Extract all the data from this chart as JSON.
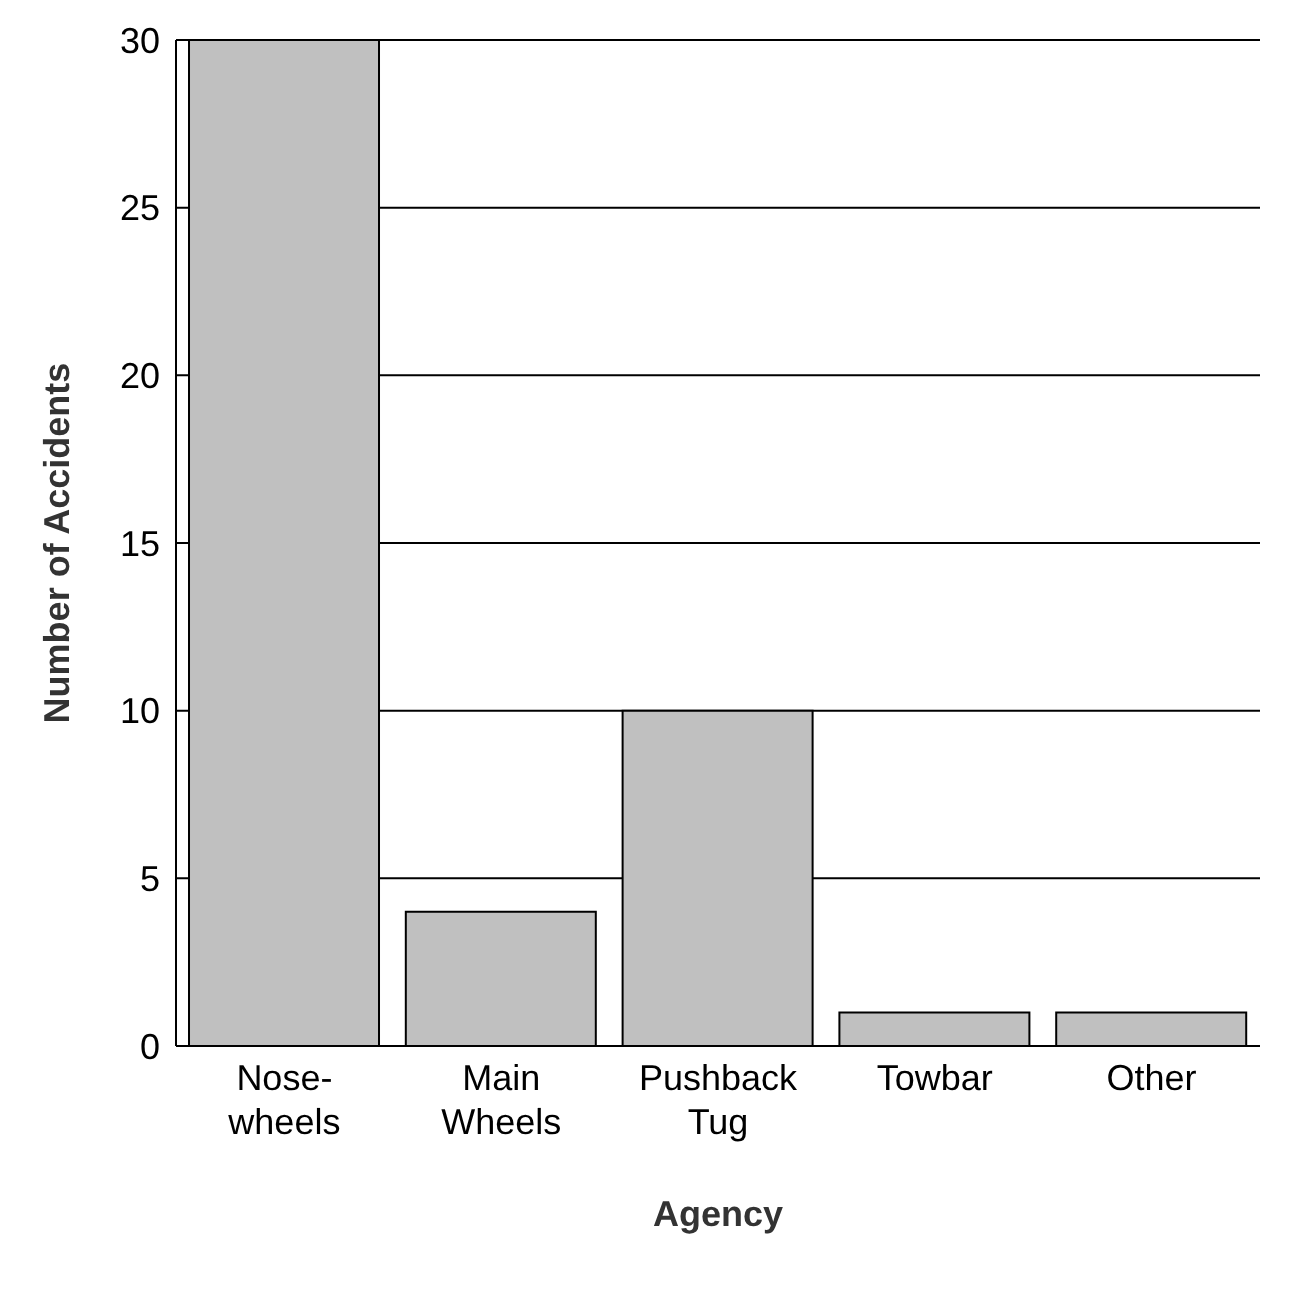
{
  "chart_data": {
    "type": "bar",
    "xlabel": "Agency",
    "ylabel": "Number of Accidents",
    "categories": [
      "Nose-wheels",
      "Main Wheels",
      "Pushback Tug",
      "Towbar",
      "Other"
    ],
    "values": [
      30,
      4,
      10,
      1,
      1
    ],
    "color": "#c0c0c0",
    "ylim": [
      0,
      30
    ],
    "yticks": [
      0,
      5,
      10,
      15,
      20,
      25,
      30
    ],
    "grid": "y"
  }
}
